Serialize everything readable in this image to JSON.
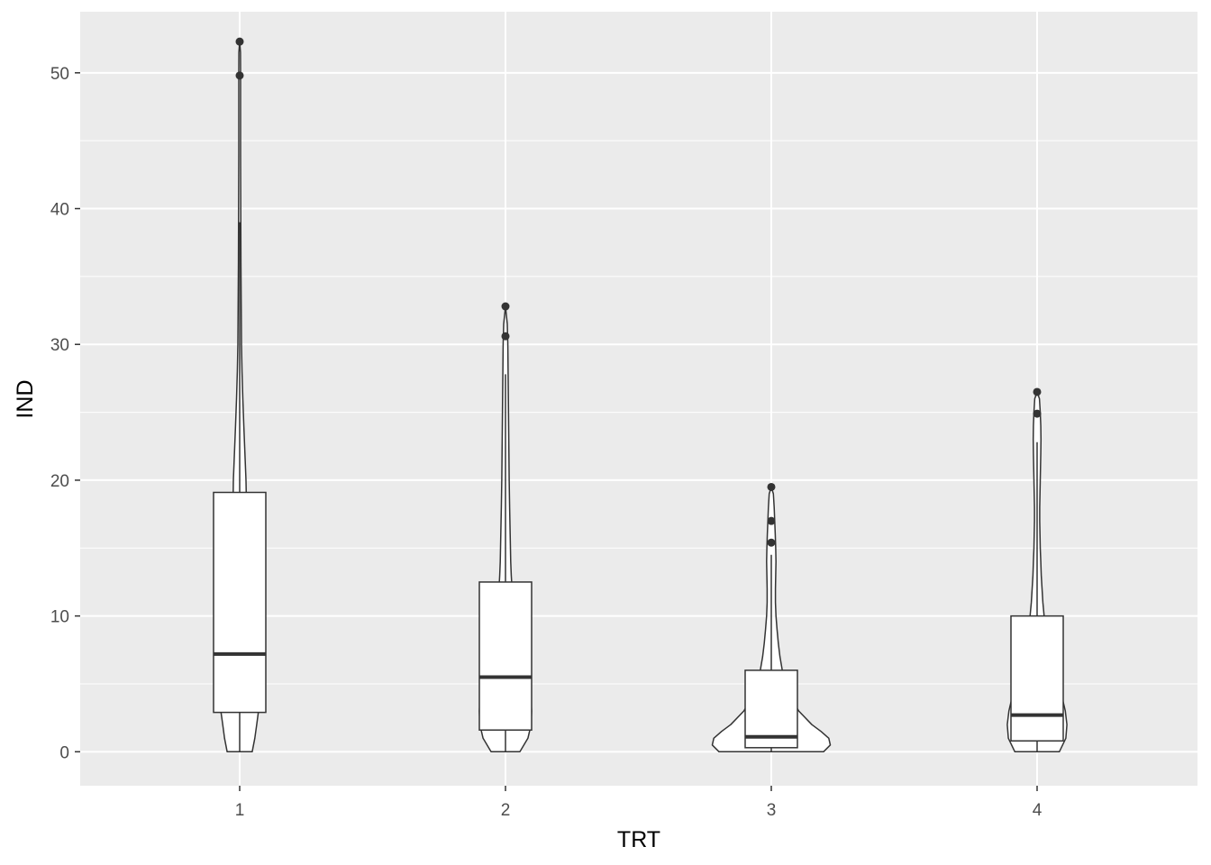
{
  "chart_data": {
    "type": "violin",
    "xlabel": "TRT",
    "ylabel": "IND",
    "categories": [
      "1",
      "2",
      "3",
      "4"
    ],
    "ylim": [
      -2.5,
      54.5
    ],
    "y_ticks": [
      0,
      10,
      20,
      30,
      40,
      50
    ],
    "grid": true,
    "colors": {
      "panel": "#ebebeb",
      "grid": "#ffffff",
      "fill": "#ffffff",
      "stroke": "#333333",
      "tick_text": "#4d4d4d",
      "axis_title": "#000000"
    },
    "groups": [
      {
        "category": "1",
        "boxplot": {
          "q1": 2.9,
          "median": 7.2,
          "q3": 19.1,
          "whisker_low": 0,
          "whisker_high": 39.0
        },
        "outliers": [
          49.8,
          52.3
        ],
        "violin_density": [
          [
            0,
            0.48
          ],
          [
            1,
            0.58
          ],
          [
            2,
            0.65
          ],
          [
            3,
            0.72
          ],
          [
            4,
            0.74
          ],
          [
            5,
            0.76
          ],
          [
            6,
            0.74
          ],
          [
            7,
            0.7
          ],
          [
            8,
            0.64
          ],
          [
            9,
            0.57
          ],
          [
            10,
            0.48
          ],
          [
            11,
            0.4
          ],
          [
            12,
            0.34
          ],
          [
            13,
            0.3
          ],
          [
            14,
            0.28
          ],
          [
            15,
            0.27
          ],
          [
            16,
            0.26
          ],
          [
            17,
            0.26
          ],
          [
            18,
            0.26
          ],
          [
            19,
            0.25
          ],
          [
            20,
            0.24
          ],
          [
            22,
            0.2
          ],
          [
            24,
            0.16
          ],
          [
            26,
            0.12
          ],
          [
            28,
            0.09
          ],
          [
            30,
            0.07
          ],
          [
            33,
            0.06
          ],
          [
            36,
            0.05
          ],
          [
            40,
            0.04
          ],
          [
            44,
            0.035
          ],
          [
            48,
            0.035
          ],
          [
            50,
            0.035
          ],
          [
            51.5,
            0.03
          ],
          [
            52.3,
            0
          ]
        ]
      },
      {
        "category": "2",
        "boxplot": {
          "q1": 1.6,
          "median": 5.5,
          "q3": 12.5,
          "whisker_low": 0,
          "whisker_high": 27.8
        },
        "outliers": [
          30.6,
          32.8
        ],
        "violin_density": [
          [
            0,
            0.55
          ],
          [
            1,
            0.86
          ],
          [
            2,
            0.98
          ],
          [
            3,
            1.0
          ],
          [
            4,
            0.97
          ],
          [
            5,
            0.9
          ],
          [
            6,
            0.8
          ],
          [
            7,
            0.67
          ],
          [
            8,
            0.55
          ],
          [
            9,
            0.45
          ],
          [
            10,
            0.37
          ],
          [
            11,
            0.3
          ],
          [
            12,
            0.25
          ],
          [
            13,
            0.22
          ],
          [
            14,
            0.2
          ],
          [
            15,
            0.19
          ],
          [
            16,
            0.18
          ],
          [
            18,
            0.16
          ],
          [
            20,
            0.14
          ],
          [
            22,
            0.13
          ],
          [
            24,
            0.12
          ],
          [
            26,
            0.11
          ],
          [
            28,
            0.1
          ],
          [
            30,
            0.09
          ],
          [
            31.5,
            0.07
          ],
          [
            32.8,
            0
          ]
        ]
      },
      {
        "category": "3",
        "boxplot": {
          "q1": 0.3,
          "median": 1.1,
          "q3": 6.0,
          "whisker_low": 0,
          "whisker_high": 14.5
        },
        "outliers": [
          15.4,
          17.0,
          19.5
        ],
        "violin_density": [
          [
            0,
            2.0
          ],
          [
            0.5,
            2.26
          ],
          [
            1,
            2.2
          ],
          [
            1.5,
            1.9
          ],
          [
            2,
            1.55
          ],
          [
            3,
            1.05
          ],
          [
            4,
            0.75
          ],
          [
            5,
            0.55
          ],
          [
            6,
            0.42
          ],
          [
            7,
            0.33
          ],
          [
            8,
            0.27
          ],
          [
            9,
            0.22
          ],
          [
            10,
            0.18
          ],
          [
            11,
            0.16
          ],
          [
            12,
            0.16
          ],
          [
            13,
            0.17
          ],
          [
            14,
            0.18
          ],
          [
            15,
            0.17
          ],
          [
            16,
            0.15
          ],
          [
            17,
            0.13
          ],
          [
            18,
            0.11
          ],
          [
            19,
            0.08
          ],
          [
            19.5,
            0
          ]
        ]
      },
      {
        "category": "4",
        "boxplot": {
          "q1": 0.8,
          "median": 2.7,
          "q3": 10.0,
          "whisker_low": 0,
          "whisker_high": 22.8
        },
        "outliers": [
          24.9,
          26.5
        ],
        "violin_density": [
          [
            0,
            0.85
          ],
          [
            1,
            1.1
          ],
          [
            2,
            1.14
          ],
          [
            3,
            1.08
          ],
          [
            4,
            0.96
          ],
          [
            5,
            0.8
          ],
          [
            6,
            0.64
          ],
          [
            7,
            0.5
          ],
          [
            8,
            0.4
          ],
          [
            9,
            0.33
          ],
          [
            10,
            0.27
          ],
          [
            11,
            0.22
          ],
          [
            12,
            0.19
          ],
          [
            13,
            0.16
          ],
          [
            14,
            0.14
          ],
          [
            15,
            0.12
          ],
          [
            16,
            0.11
          ],
          [
            17,
            0.1
          ],
          [
            18,
            0.1
          ],
          [
            19,
            0.11
          ],
          [
            20,
            0.12
          ],
          [
            21,
            0.13
          ],
          [
            22,
            0.14
          ],
          [
            23,
            0.15
          ],
          [
            24,
            0.14
          ],
          [
            25,
            0.12
          ],
          [
            26,
            0.09
          ],
          [
            26.5,
            0
          ]
        ]
      }
    ]
  }
}
